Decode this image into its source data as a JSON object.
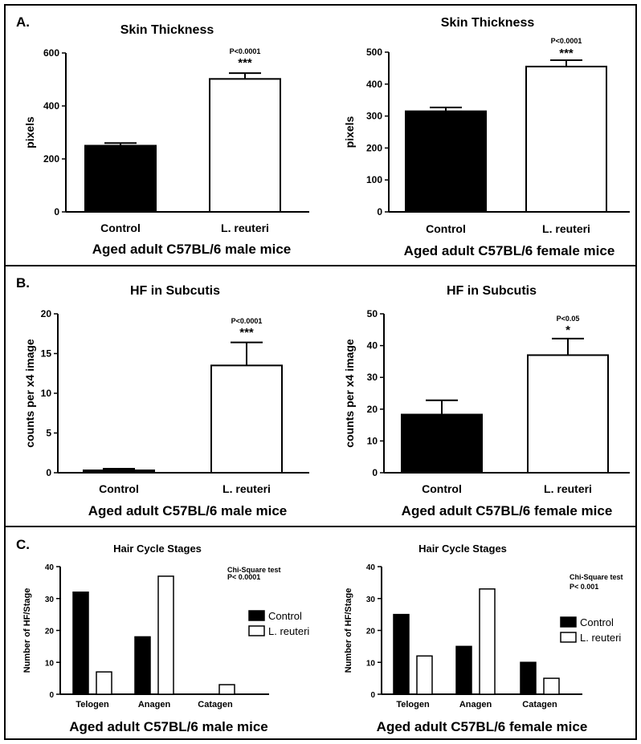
{
  "panels": [
    {
      "letter": "A."
    },
    {
      "letter": "B."
    },
    {
      "letter": "C."
    }
  ],
  "chart_data": [
    {
      "type": "bar",
      "panel": "A",
      "title": "Skin Thickness",
      "ylabel": "pixels",
      "xlabel": "Aged adult C57BL/6 male mice",
      "categories": [
        "Control",
        "L. reuteri"
      ],
      "values": [
        250,
        502
      ],
      "errors": [
        10,
        22
      ],
      "fill": [
        "#000000",
        "#ffffff"
      ],
      "ylim": [
        0,
        600
      ],
      "yticks": [
        0,
        200,
        400,
        600
      ],
      "yticks_display": [
        "0",
        "200",
        "400",
        "600"
      ],
      "pvalue": "P<0.0001",
      "significance": "***"
    },
    {
      "type": "bar",
      "panel": "A",
      "title": "Skin Thickness",
      "ylabel": "pixels",
      "xlabel": "Aged adult C57BL/6 female mice",
      "categories": [
        "Control",
        "L. reuteri"
      ],
      "values": [
        315,
        455
      ],
      "errors": [
        12,
        20
      ],
      "fill": [
        "#000000",
        "#ffffff"
      ],
      "ylim": [
        0,
        500
      ],
      "yticks": [
        0,
        100,
        200,
        300,
        400,
        500
      ],
      "yticks_display": [
        "0",
        "100",
        "200",
        "300",
        "400",
        "500"
      ],
      "pvalue": "P<0.0001",
      "significance": "***"
    },
    {
      "type": "bar",
      "panel": "B",
      "title": "HF in Subcutis",
      "ylabel": "counts per x4 image",
      "xlabel": "Aged adult C57BL/6 male mice",
      "categories": [
        "Control",
        "L. reuteri"
      ],
      "values": [
        0.3,
        13.5
      ],
      "errors": [
        0.2,
        2.9
      ],
      "fill": [
        "#000000",
        "#ffffff"
      ],
      "ylim": [
        0,
        20
      ],
      "yticks": [
        0,
        5,
        10,
        15,
        20
      ],
      "yticks_display": [
        "0",
        "5",
        "10",
        "15",
        "20"
      ],
      "pvalue": "P<0.0001",
      "significance": "***"
    },
    {
      "type": "bar",
      "panel": "B",
      "title": "HF in Subcutis",
      "ylabel": "counts per x4 image",
      "xlabel": "Aged adult C57BL/6 female mice",
      "categories": [
        "Control",
        "L. reuteri"
      ],
      "values": [
        18.3,
        37
      ],
      "errors": [
        4.5,
        5.2
      ],
      "fill": [
        "#000000",
        "#ffffff"
      ],
      "ylim": [
        0,
        50
      ],
      "yticks": [
        0,
        10,
        20,
        30,
        40,
        50
      ],
      "yticks_display": [
        "0",
        "10",
        "20",
        "30",
        "40",
        "50"
      ],
      "pvalue": "P<0.05",
      "significance": "*"
    },
    {
      "type": "bar",
      "panel": "C",
      "title": "Hair Cycle Stages",
      "ylabel": "Number of HF/Stage",
      "xlabel": "Aged adult C57BL/6 male mice",
      "categories": [
        "Telogen",
        "Anagen",
        "Catagen"
      ],
      "series": [
        {
          "name": "Control",
          "values": [
            32,
            18,
            0
          ],
          "fill": "#000000"
        },
        {
          "name": "L. reuteri",
          "values": [
            7,
            37,
            3
          ],
          "fill": "#ffffff"
        }
      ],
      "ylim": [
        0,
        40
      ],
      "yticks": [
        0,
        10,
        20,
        30,
        40
      ],
      "yticks_display": [
        "0",
        "10",
        "20",
        "30",
        "40"
      ],
      "stat_test": "Chi-Square test",
      "pvalue": "P< 0.0001",
      "legend_position": "right"
    },
    {
      "type": "bar",
      "panel": "C",
      "title": "Hair Cycle Stages",
      "ylabel": "Number of HF/Stage",
      "xlabel": "Aged adult C57BL/6 female mice",
      "categories": [
        "Telogen",
        "Anagen",
        "Catagen"
      ],
      "series": [
        {
          "name": "Control",
          "values": [
            25,
            15,
            10
          ],
          "fill": "#000000"
        },
        {
          "name": "L. reuteri",
          "values": [
            12,
            33,
            5
          ],
          "fill": "#ffffff"
        }
      ],
      "ylim": [
        0,
        40
      ],
      "yticks": [
        0,
        10,
        20,
        30,
        40
      ],
      "yticks_display": [
        "0",
        "10",
        "20",
        "30",
        "40"
      ],
      "stat_test": "Chi-Square test",
      "pvalue": "P< 0.001",
      "legend_position": "right"
    }
  ]
}
